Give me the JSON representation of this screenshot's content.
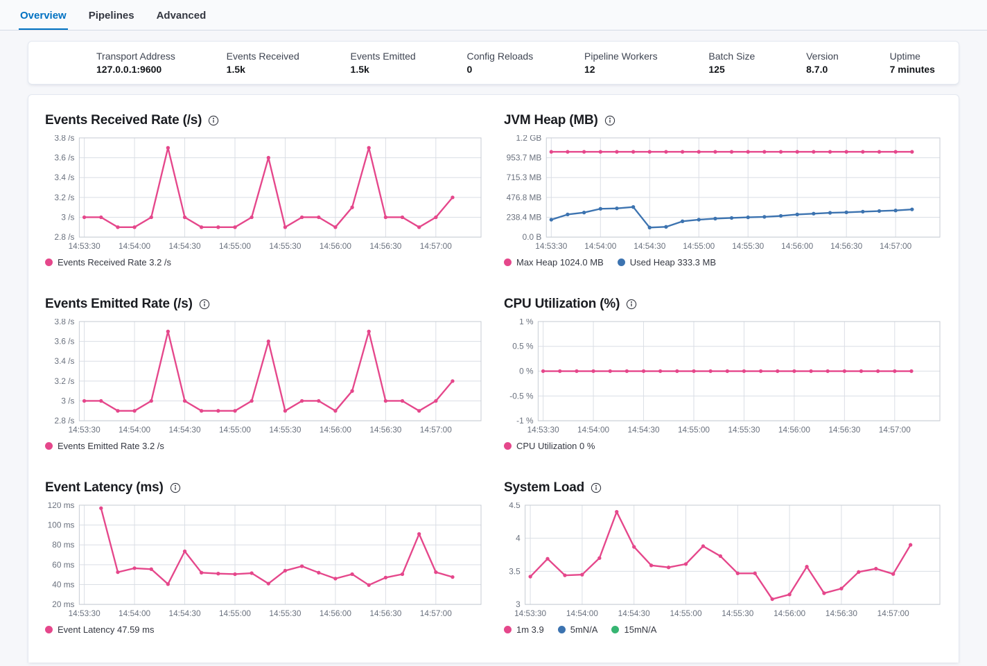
{
  "tabs": [
    {
      "label": "Overview",
      "active": true
    },
    {
      "label": "Pipelines",
      "active": false
    },
    {
      "label": "Advanced",
      "active": false
    }
  ],
  "summary": {
    "items": [
      {
        "label": "Transport Address",
        "value": "127.0.0.1:9600"
      },
      {
        "label": "Events Received",
        "value": "1.5k"
      },
      {
        "label": "Events Emitted",
        "value": "1.5k"
      },
      {
        "label": "Config Reloads",
        "value": "0"
      },
      {
        "label": "Pipeline Workers",
        "value": "12"
      },
      {
        "label": "Batch Size",
        "value": "125"
      },
      {
        "label": "Version",
        "value": "8.7.0"
      },
      {
        "label": "Uptime",
        "value": "7 minutes"
      }
    ]
  },
  "theme": {
    "pink": "#e5478b",
    "blue": "#3c73b0",
    "green": "#36b572",
    "grid": "#dadee5",
    "plot_border": "#c6cbd3",
    "tick_text": "#69707d",
    "accent": "#0071c2"
  },
  "chart_data": {
    "time_axis": {
      "tick_labels": [
        "14:53:30",
        "14:54:00",
        "14:54:30",
        "14:55:00",
        "14:55:30",
        "14:56:00",
        "14:56:30",
        "14:57:00"
      ],
      "tick_seconds": [
        0,
        30,
        60,
        90,
        120,
        150,
        180,
        210
      ],
      "domain": [
        -3,
        237
      ]
    },
    "charts": [
      {
        "id": "events-received-rate",
        "type": "line",
        "title": "Events Received Rate (/s)",
        "ylim": [
          2.8,
          3.8
        ],
        "y_ticks": [
          {
            "v": 3.8,
            "label": "3.8 /s"
          },
          {
            "v": 3.6,
            "label": "3.6 /s"
          },
          {
            "v": 3.4,
            "label": "3.4 /s"
          },
          {
            "v": 3.2,
            "label": "3.2 /s"
          },
          {
            "v": 3.0,
            "label": "3 /s"
          },
          {
            "v": 2.8,
            "label": "2.8 /s"
          }
        ],
        "series": [
          {
            "name": "Events Received Rate",
            "color": "pink",
            "points": [
              [
                0,
                3
              ],
              [
                10,
                3
              ],
              [
                20,
                2.9
              ],
              [
                30,
                2.9
              ],
              [
                40,
                3
              ],
              [
                50,
                3.7
              ],
              [
                60,
                3
              ],
              [
                70,
                2.9
              ],
              [
                80,
                2.9
              ],
              [
                90,
                2.9
              ],
              [
                100,
                3
              ],
              [
                110,
                3.6
              ],
              [
                120,
                2.9
              ],
              [
                130,
                3
              ],
              [
                140,
                3
              ],
              [
                150,
                2.9
              ],
              [
                160,
                3.1
              ],
              [
                170,
                3.7
              ],
              [
                180,
                3
              ],
              [
                190,
                3
              ],
              [
                200,
                2.9
              ],
              [
                210,
                3
              ],
              [
                220,
                3.2
              ]
            ]
          }
        ],
        "legend": [
          {
            "color": "pink",
            "label": "Events Received Rate 3.2 /s"
          }
        ]
      },
      {
        "id": "jvm-heap",
        "type": "line",
        "title": "JVM Heap (MB)",
        "ylim": [
          0,
          1192.1
        ],
        "y_ticks": [
          {
            "v": 1192.1,
            "label": "1.2 GB"
          },
          {
            "v": 953.7,
            "label": "953.7 MB"
          },
          {
            "v": 715.3,
            "label": "715.3 MB"
          },
          {
            "v": 476.8,
            "label": "476.8 MB"
          },
          {
            "v": 238.4,
            "label": "238.4 MB"
          },
          {
            "v": 0,
            "label": "0.0 B"
          }
        ],
        "series": [
          {
            "name": "Max Heap",
            "color": "pink",
            "points": [
              [
                0,
                1024
              ],
              [
                10,
                1024
              ],
              [
                20,
                1024
              ],
              [
                30,
                1024
              ],
              [
                40,
                1024
              ],
              [
                50,
                1024
              ],
              [
                60,
                1024
              ],
              [
                70,
                1024
              ],
              [
                80,
                1024
              ],
              [
                90,
                1024
              ],
              [
                100,
                1024
              ],
              [
                110,
                1024
              ],
              [
                120,
                1024
              ],
              [
                130,
                1024
              ],
              [
                140,
                1024
              ],
              [
                150,
                1024
              ],
              [
                160,
                1024
              ],
              [
                170,
                1024
              ],
              [
                180,
                1024
              ],
              [
                190,
                1024
              ],
              [
                200,
                1024
              ],
              [
                210,
                1024
              ],
              [
                220,
                1024
              ]
            ]
          },
          {
            "name": "Used Heap",
            "color": "blue",
            "points": [
              [
                0,
                210
              ],
              [
                10,
                272
              ],
              [
                20,
                295
              ],
              [
                30,
                340
              ],
              [
                40,
                345
              ],
              [
                50,
                362
              ],
              [
                60,
                115
              ],
              [
                70,
                123
              ],
              [
                80,
                190
              ],
              [
                90,
                210
              ],
              [
                100,
                222
              ],
              [
                110,
                230
              ],
              [
                120,
                238
              ],
              [
                130,
                243
              ],
              [
                140,
                255
              ],
              [
                150,
                272
              ],
              [
                160,
                282
              ],
              [
                170,
                292
              ],
              [
                180,
                298
              ],
              [
                190,
                306
              ],
              [
                200,
                313
              ],
              [
                210,
                320
              ],
              [
                220,
                333.3
              ]
            ]
          }
        ],
        "legend": [
          {
            "color": "pink",
            "label": "Max Heap 1024.0 MB"
          },
          {
            "color": "blue",
            "label": "Used Heap 333.3 MB"
          }
        ]
      },
      {
        "id": "events-emitted-rate",
        "type": "line",
        "title": "Events Emitted Rate (/s)",
        "ylim": [
          2.8,
          3.8
        ],
        "y_ticks": [
          {
            "v": 3.8,
            "label": "3.8 /s"
          },
          {
            "v": 3.6,
            "label": "3.6 /s"
          },
          {
            "v": 3.4,
            "label": "3.4 /s"
          },
          {
            "v": 3.2,
            "label": "3.2 /s"
          },
          {
            "v": 3.0,
            "label": "3 /s"
          },
          {
            "v": 2.8,
            "label": "2.8 /s"
          }
        ],
        "series": [
          {
            "name": "Events Emitted Rate",
            "color": "pink",
            "points": [
              [
                0,
                3
              ],
              [
                10,
                3
              ],
              [
                20,
                2.9
              ],
              [
                30,
                2.9
              ],
              [
                40,
                3
              ],
              [
                50,
                3.7
              ],
              [
                60,
                3
              ],
              [
                70,
                2.9
              ],
              [
                80,
                2.9
              ],
              [
                90,
                2.9
              ],
              [
                100,
                3
              ],
              [
                110,
                3.6
              ],
              [
                120,
                2.9
              ],
              [
                130,
                3
              ],
              [
                140,
                3
              ],
              [
                150,
                2.9
              ],
              [
                160,
                3.1
              ],
              [
                170,
                3.7
              ],
              [
                180,
                3
              ],
              [
                190,
                3
              ],
              [
                200,
                2.9
              ],
              [
                210,
                3
              ],
              [
                220,
                3.2
              ]
            ]
          }
        ],
        "legend": [
          {
            "color": "pink",
            "label": "Events Emitted Rate 3.2 /s"
          }
        ]
      },
      {
        "id": "cpu-utilization",
        "type": "line",
        "title": "CPU Utilization (%)",
        "ylim": [
          -1,
          1
        ],
        "y_ticks": [
          {
            "v": 1,
            "label": "1 %"
          },
          {
            "v": 0.5,
            "label": "0.5 %"
          },
          {
            "v": 0,
            "label": "0 %"
          },
          {
            "v": -0.5,
            "label": "-0.5 %"
          },
          {
            "v": -1,
            "label": "-1 %"
          }
        ],
        "series": [
          {
            "name": "CPU Utilization",
            "color": "pink",
            "points": [
              [
                0,
                0
              ],
              [
                10,
                0
              ],
              [
                20,
                0
              ],
              [
                30,
                0
              ],
              [
                40,
                0
              ],
              [
                50,
                0
              ],
              [
                60,
                0
              ],
              [
                70,
                0
              ],
              [
                80,
                0
              ],
              [
                90,
                0
              ],
              [
                100,
                0
              ],
              [
                110,
                0
              ],
              [
                120,
                0
              ],
              [
                130,
                0
              ],
              [
                140,
                0
              ],
              [
                150,
                0
              ],
              [
                160,
                0
              ],
              [
                170,
                0
              ],
              [
                180,
                0
              ],
              [
                190,
                0
              ],
              [
                200,
                0
              ],
              [
                210,
                0
              ],
              [
                220,
                0
              ]
            ]
          }
        ],
        "legend": [
          {
            "color": "pink",
            "label": "CPU Utilization 0 %"
          }
        ]
      },
      {
        "id": "event-latency",
        "type": "line",
        "title": "Event Latency (ms)",
        "ylim": [
          20,
          120
        ],
        "y_ticks": [
          {
            "v": 120,
            "label": "120 ms"
          },
          {
            "v": 100,
            "label": "100 ms"
          },
          {
            "v": 80,
            "label": "80 ms"
          },
          {
            "v": 60,
            "label": "60 ms"
          },
          {
            "v": 40,
            "label": "40 ms"
          },
          {
            "v": 20,
            "label": "20 ms"
          }
        ],
        "series": [
          {
            "name": "Event Latency",
            "color": "pink",
            "points": [
              [
                10,
                117
              ],
              [
                20,
                52.5
              ],
              [
                30,
                56.5
              ],
              [
                40,
                55.5
              ],
              [
                50,
                40.5
              ],
              [
                60,
                73.5
              ],
              [
                70,
                52
              ],
              [
                80,
                51
              ],
              [
                90,
                50.5
              ],
              [
                100,
                51.5
              ],
              [
                110,
                41
              ],
              [
                120,
                54
              ],
              [
                130,
                58.5
              ],
              [
                140,
                52
              ],
              [
                150,
                46
              ],
              [
                160,
                50.5
              ],
              [
                170,
                39.5
              ],
              [
                180,
                47
              ],
              [
                190,
                50.5
              ],
              [
                200,
                91
              ],
              [
                210,
                52.5
              ],
              [
                220,
                47.59
              ]
            ]
          }
        ],
        "legend": [
          {
            "color": "pink",
            "label": "Event Latency 47.59 ms"
          }
        ]
      },
      {
        "id": "system-load",
        "type": "line",
        "title": "System Load",
        "ylim": [
          3,
          4.5
        ],
        "y_ticks": [
          {
            "v": 4.5,
            "label": "4.5"
          },
          {
            "v": 4,
            "label": "4"
          },
          {
            "v": 3.5,
            "label": "3.5"
          },
          {
            "v": 3,
            "label": "3"
          }
        ],
        "series": [
          {
            "name": "1m",
            "color": "pink",
            "points": [
              [
                0,
                3.42
              ],
              [
                10,
                3.69
              ],
              [
                20,
                3.44
              ],
              [
                30,
                3.45
              ],
              [
                40,
                3.7
              ],
              [
                50,
                4.4
              ],
              [
                60,
                3.87
              ],
              [
                70,
                3.59
              ],
              [
                80,
                3.56
              ],
              [
                90,
                3.61
              ],
              [
                100,
                3.88
              ],
              [
                110,
                3.73
              ],
              [
                120,
                3.47
              ],
              [
                130,
                3.47
              ],
              [
                140,
                3.08
              ],
              [
                150,
                3.15
              ],
              [
                160,
                3.57
              ],
              [
                170,
                3.17
              ],
              [
                180,
                3.24
              ],
              [
                190,
                3.49
              ],
              [
                200,
                3.54
              ],
              [
                210,
                3.46
              ],
              [
                220,
                3.9
              ]
            ]
          }
        ],
        "legend": [
          {
            "color": "pink",
            "label": "1m 3.9"
          },
          {
            "color": "blue",
            "label": "5mN/A"
          },
          {
            "color": "green",
            "label": "15mN/A"
          }
        ]
      }
    ]
  }
}
